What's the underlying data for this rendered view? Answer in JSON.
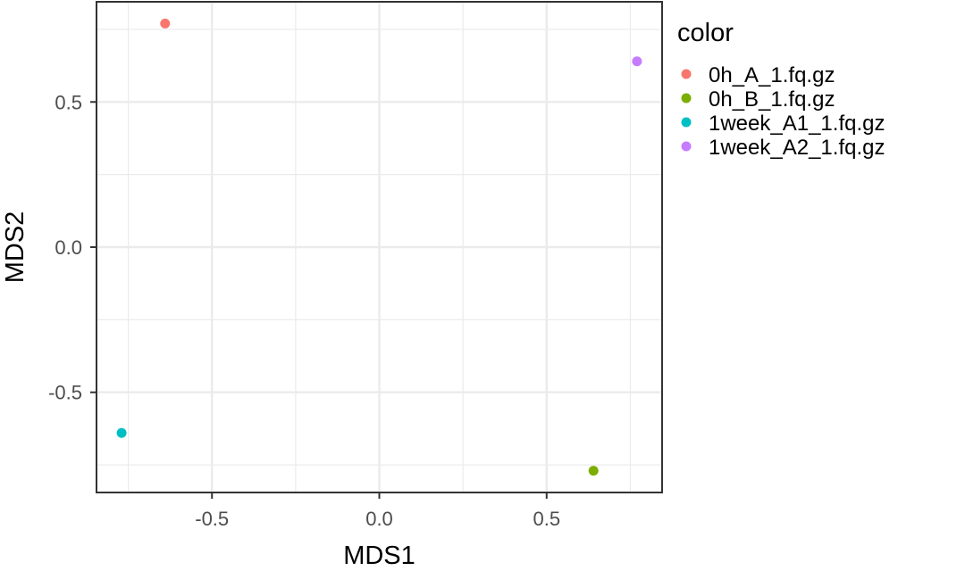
{
  "chart_data": {
    "type": "scatter",
    "xlabel": "MDS1",
    "ylabel": "MDS2",
    "xlim": [
      -0.845,
      0.845
    ],
    "ylim": [
      -0.845,
      0.845
    ],
    "x_ticks": [
      -0.5,
      0.0,
      0.5
    ],
    "x_tick_labels": [
      "-0.5",
      "0.0",
      "0.5"
    ],
    "y_ticks": [
      -0.5,
      0.0,
      0.5
    ],
    "y_tick_labels": [
      "-0.5",
      "0.0",
      "0.5"
    ],
    "grid": true,
    "legend_title": "color",
    "legend_position": "right",
    "series": [
      {
        "name": "0h_A_1.fq.gz",
        "color": "#F8766D",
        "points": [
          [
            -0.64,
            0.77
          ]
        ]
      },
      {
        "name": "0h_B_1.fq.gz",
        "color": "#7CAE00",
        "points": [
          [
            0.64,
            -0.77
          ]
        ]
      },
      {
        "name": "1week_A1_1.fq.gz",
        "color": "#00BFC4",
        "points": [
          [
            -0.77,
            -0.64
          ]
        ]
      },
      {
        "name": "1week_A2_1.fq.gz",
        "color": "#C77CFF",
        "points": [
          [
            0.77,
            0.64
          ]
        ]
      }
    ]
  }
}
